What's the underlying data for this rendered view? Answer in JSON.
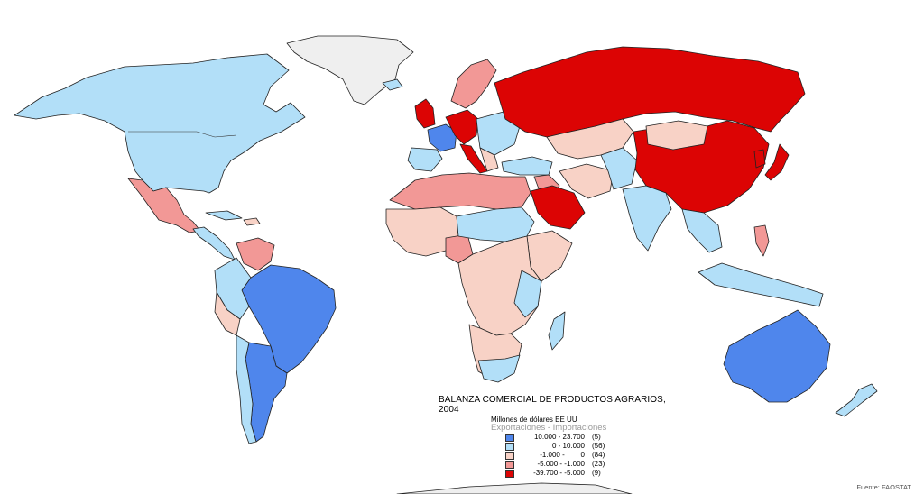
{
  "title": "BALANZA COMERCIAL DE PRODUCTOS AGRARIOS, 2004",
  "subtitle": "Millones de dólares EE UU",
  "note": "Exportaciones - Importaciones",
  "legend": [
    {
      "range": "10.000 - 23.700",
      "count": "(5)",
      "color": "#4f86ec"
    },
    {
      "range": "0 - 10.000",
      "count": "(56)",
      "color": "#b2dff8"
    },
    {
      "range": "-1.000 -        0",
      "count": "(84)",
      "color": "#f8d2c6"
    },
    {
      "range": "-5.000 - -1.000",
      "count": "(23)",
      "color": "#f29896"
    },
    {
      "range": "-39.700 - -5.000",
      "count": "(9)",
      "color": "#dc0404"
    }
  ],
  "source": "Fuente: FAOSTAT",
  "colors": {
    "no_data": "#efefef",
    "outline": "#222222",
    "background": "#ffffff"
  }
}
